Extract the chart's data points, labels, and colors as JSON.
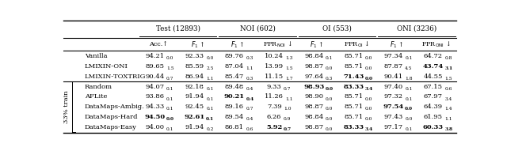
{
  "group_labels": [
    "Test (12893)",
    "NOI (602)",
    "OI (553)",
    "ONI (3236)"
  ],
  "col_headers": [
    "Acc.↑",
    "F1↑",
    "F1↑",
    "FPR_NOI↓",
    "F1↑",
    "FPR_OI↓",
    "F1↑",
    "FPR_ONI↓"
  ],
  "row_group_label": "33% train",
  "rows": [
    {
      "group": "",
      "name": "Vanilla",
      "values": [
        [
          "94.21",
          "0.0"
        ],
        [
          "92.33",
          "0.0"
        ],
        [
          "89.76",
          "0.3"
        ],
        [
          "10.24",
          "1.3"
        ],
        [
          "98.84",
          "0.1"
        ],
        [
          "85.71",
          "0.0"
        ],
        [
          "97.34",
          "0.1"
        ],
        [
          "64.72",
          "0.8"
        ]
      ],
      "bold": [
        false,
        false,
        false,
        false,
        false,
        false,
        false,
        false
      ]
    },
    {
      "group": "",
      "name": "LMIXIN-ONI",
      "values": [
        [
          "89.65",
          "1.5"
        ],
        [
          "85.59",
          "2.5"
        ],
        [
          "87.04",
          "1.1"
        ],
        [
          "13.99",
          "1.5"
        ],
        [
          "98.87",
          "0.0"
        ],
        [
          "85.71",
          "0.0"
        ],
        [
          "87.87",
          "4.5"
        ],
        [
          "43.74",
          "3.1"
        ]
      ],
      "bold": [
        false,
        false,
        false,
        false,
        false,
        false,
        false,
        true
      ]
    },
    {
      "group": "",
      "name": "LMIXIN-TOXTRIG",
      "values": [
        [
          "90.44",
          "0.7"
        ],
        [
          "86.94",
          "1.1"
        ],
        [
          "85.47",
          "0.3"
        ],
        [
          "11.15",
          "1.7"
        ],
        [
          "97.64",
          "0.3"
        ],
        [
          "71.43",
          "0.0"
        ],
        [
          "90.41",
          "1.8"
        ],
        [
          "44.55",
          "1.5"
        ]
      ],
      "bold": [
        false,
        false,
        false,
        false,
        false,
        true,
        false,
        false
      ]
    },
    {
      "group": "33pct",
      "name": "Random",
      "values": [
        [
          "94.07",
          "0.1"
        ],
        [
          "92.18",
          "0.1"
        ],
        [
          "89.48",
          "0.4"
        ],
        [
          "9.33",
          "0.7"
        ],
        [
          "98.93",
          "0.0"
        ],
        [
          "83.33",
          "3.4"
        ],
        [
          "97.40",
          "0.1"
        ],
        [
          "67.15",
          "0.6"
        ]
      ],
      "bold": [
        false,
        false,
        false,
        false,
        true,
        true,
        false,
        false
      ]
    },
    {
      "group": "33pct",
      "name": "AFLite",
      "values": [
        [
          "93.86",
          "0.1"
        ],
        [
          "91.94",
          "0.1"
        ],
        [
          "90.21",
          "0.4"
        ],
        [
          "11.26",
          "1.1"
        ],
        [
          "98.90",
          "0.0"
        ],
        [
          "85.71",
          "0.0"
        ],
        [
          "97.32",
          "0.1"
        ],
        [
          "67.97",
          "3.4"
        ]
      ],
      "bold": [
        false,
        false,
        true,
        false,
        false,
        false,
        false,
        false
      ]
    },
    {
      "group": "33pct",
      "name": "DataMaps-Ambig.",
      "values": [
        [
          "94.33",
          "0.1"
        ],
        [
          "92.45",
          "0.1"
        ],
        [
          "89.16",
          "0.7"
        ],
        [
          "7.39",
          "1.0"
        ],
        [
          "98.87",
          "0.0"
        ],
        [
          "85.71",
          "0.0"
        ],
        [
          "97.54",
          "0.0"
        ],
        [
          "64.39",
          "1.4"
        ]
      ],
      "bold": [
        false,
        false,
        false,
        false,
        false,
        false,
        true,
        false
      ]
    },
    {
      "group": "33pct",
      "name": "DataMaps-Hard",
      "values": [
        [
          "94.50",
          "0.0"
        ],
        [
          "92.61",
          "0.1"
        ],
        [
          "89.54",
          "0.4"
        ],
        [
          "6.26",
          "0.9"
        ],
        [
          "98.84",
          "0.0"
        ],
        [
          "85.71",
          "0.0"
        ],
        [
          "97.43",
          "0.0"
        ],
        [
          "61.95",
          "1.1"
        ]
      ],
      "bold": [
        true,
        true,
        false,
        false,
        false,
        false,
        false,
        false
      ]
    },
    {
      "group": "33pct",
      "name": "DataMaps-Easy",
      "values": [
        [
          "94.00",
          "0.1"
        ],
        [
          "91.94",
          "0.2"
        ],
        [
          "86.81",
          "0.6"
        ],
        [
          "5.92",
          "0.7"
        ],
        [
          "98.87",
          "0.0"
        ],
        [
          "83.33",
          "3.4"
        ],
        [
          "97.17",
          "0.1"
        ],
        [
          "60.33",
          "3.8"
        ]
      ],
      "bold": [
        false,
        false,
        false,
        true,
        false,
        true,
        false,
        true
      ]
    }
  ]
}
